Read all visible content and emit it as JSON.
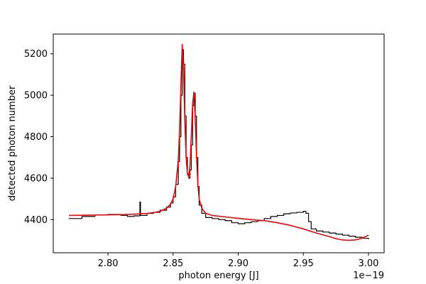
{
  "chart_data": {
    "type": "line",
    "title": "",
    "xlabel": "photon energy [J]",
    "ylabel": "detected photon number",
    "x_offset_label": "1e−19",
    "xlim": [
      2.758,
      3.012
    ],
    "ylim": [
      4240,
      5295
    ],
    "x_ticks": [
      2.8,
      2.85,
      2.9,
      2.95,
      3.0
    ],
    "x_tick_labels": [
      "2.80",
      "2.85",
      "2.90",
      "2.95",
      "3.00"
    ],
    "y_ticks": [
      4400,
      4600,
      4800,
      5000,
      5200
    ],
    "y_tick_labels": [
      "4400",
      "4600",
      "4800",
      "5000",
      "5200"
    ],
    "grid": false,
    "series": [
      {
        "color": "#000000",
        "style": "step",
        "x": [
          2.77,
          2.78,
          2.79,
          2.8,
          2.81,
          2.815,
          2.82,
          2.8245,
          2.825,
          2.83,
          2.835,
          2.84,
          2.845,
          2.848,
          2.85,
          2.852,
          2.854,
          2.855,
          2.856,
          2.857,
          2.858,
          2.859,
          2.86,
          2.861,
          2.862,
          2.863,
          2.864,
          2.865,
          2.866,
          2.867,
          2.868,
          2.869,
          2.87,
          2.872,
          2.875,
          2.88,
          2.885,
          2.89,
          2.895,
          2.9,
          2.905,
          2.91,
          2.915,
          2.92,
          2.925,
          2.93,
          2.935,
          2.94,
          2.945,
          2.95,
          2.952,
          2.954,
          2.956,
          2.96,
          2.965,
          2.97,
          2.975,
          2.98,
          2.985,
          2.99,
          2.995,
          3.0
        ],
        "y": [
          4405,
          4415,
          4422,
          4425,
          4420,
          4415,
          4418,
          4485,
          4420,
          4430,
          4435,
          4445,
          4460,
          4480,
          4510,
          4570,
          4680,
          4800,
          5000,
          5220,
          5150,
          4900,
          4700,
          4620,
          4600,
          4640,
          4760,
          4950,
          5010,
          4900,
          4700,
          4560,
          4470,
          4430,
          4410,
          4405,
          4400,
          4395,
          4385,
          4380,
          4385,
          4390,
          4395,
          4405,
          4415,
          4420,
          4428,
          4432,
          4435,
          4440,
          4430,
          4390,
          4355,
          4345,
          4340,
          4335,
          4330,
          4325,
          4320,
          4315,
          4310,
          4305
        ]
      },
      {
        "color": "#ff0000",
        "style": "line",
        "x": [
          2.77,
          2.78,
          2.79,
          2.8,
          2.81,
          2.82,
          2.83,
          2.835,
          2.84,
          2.845,
          2.848,
          2.85,
          2.852,
          2.854,
          2.855,
          2.856,
          2.857,
          2.858,
          2.859,
          2.86,
          2.861,
          2.862,
          2.863,
          2.864,
          2.865,
          2.866,
          2.867,
          2.868,
          2.869,
          2.87,
          2.872,
          2.875,
          2.88,
          2.89,
          2.9,
          2.91,
          2.92,
          2.93,
          2.94,
          2.95,
          2.96,
          2.97,
          2.975,
          2.98,
          2.985,
          2.99,
          2.995,
          3.0
        ],
        "y": [
          4420,
          4421,
          4422,
          4423,
          4424,
          4426,
          4430,
          4434,
          4440,
          4455,
          4475,
          4500,
          4560,
          4690,
          4840,
          5050,
          5245,
          5120,
          4880,
          4700,
          4620,
          4605,
          4660,
          4810,
          4960,
          5015,
          4880,
          4700,
          4570,
          4500,
          4455,
          4430,
          4420,
          4413,
          4406,
          4400,
          4395,
          4385,
          4372,
          4355,
          4335,
          4318,
          4308,
          4302,
          4300,
          4302,
          4310,
          4325
        ]
      }
    ]
  }
}
